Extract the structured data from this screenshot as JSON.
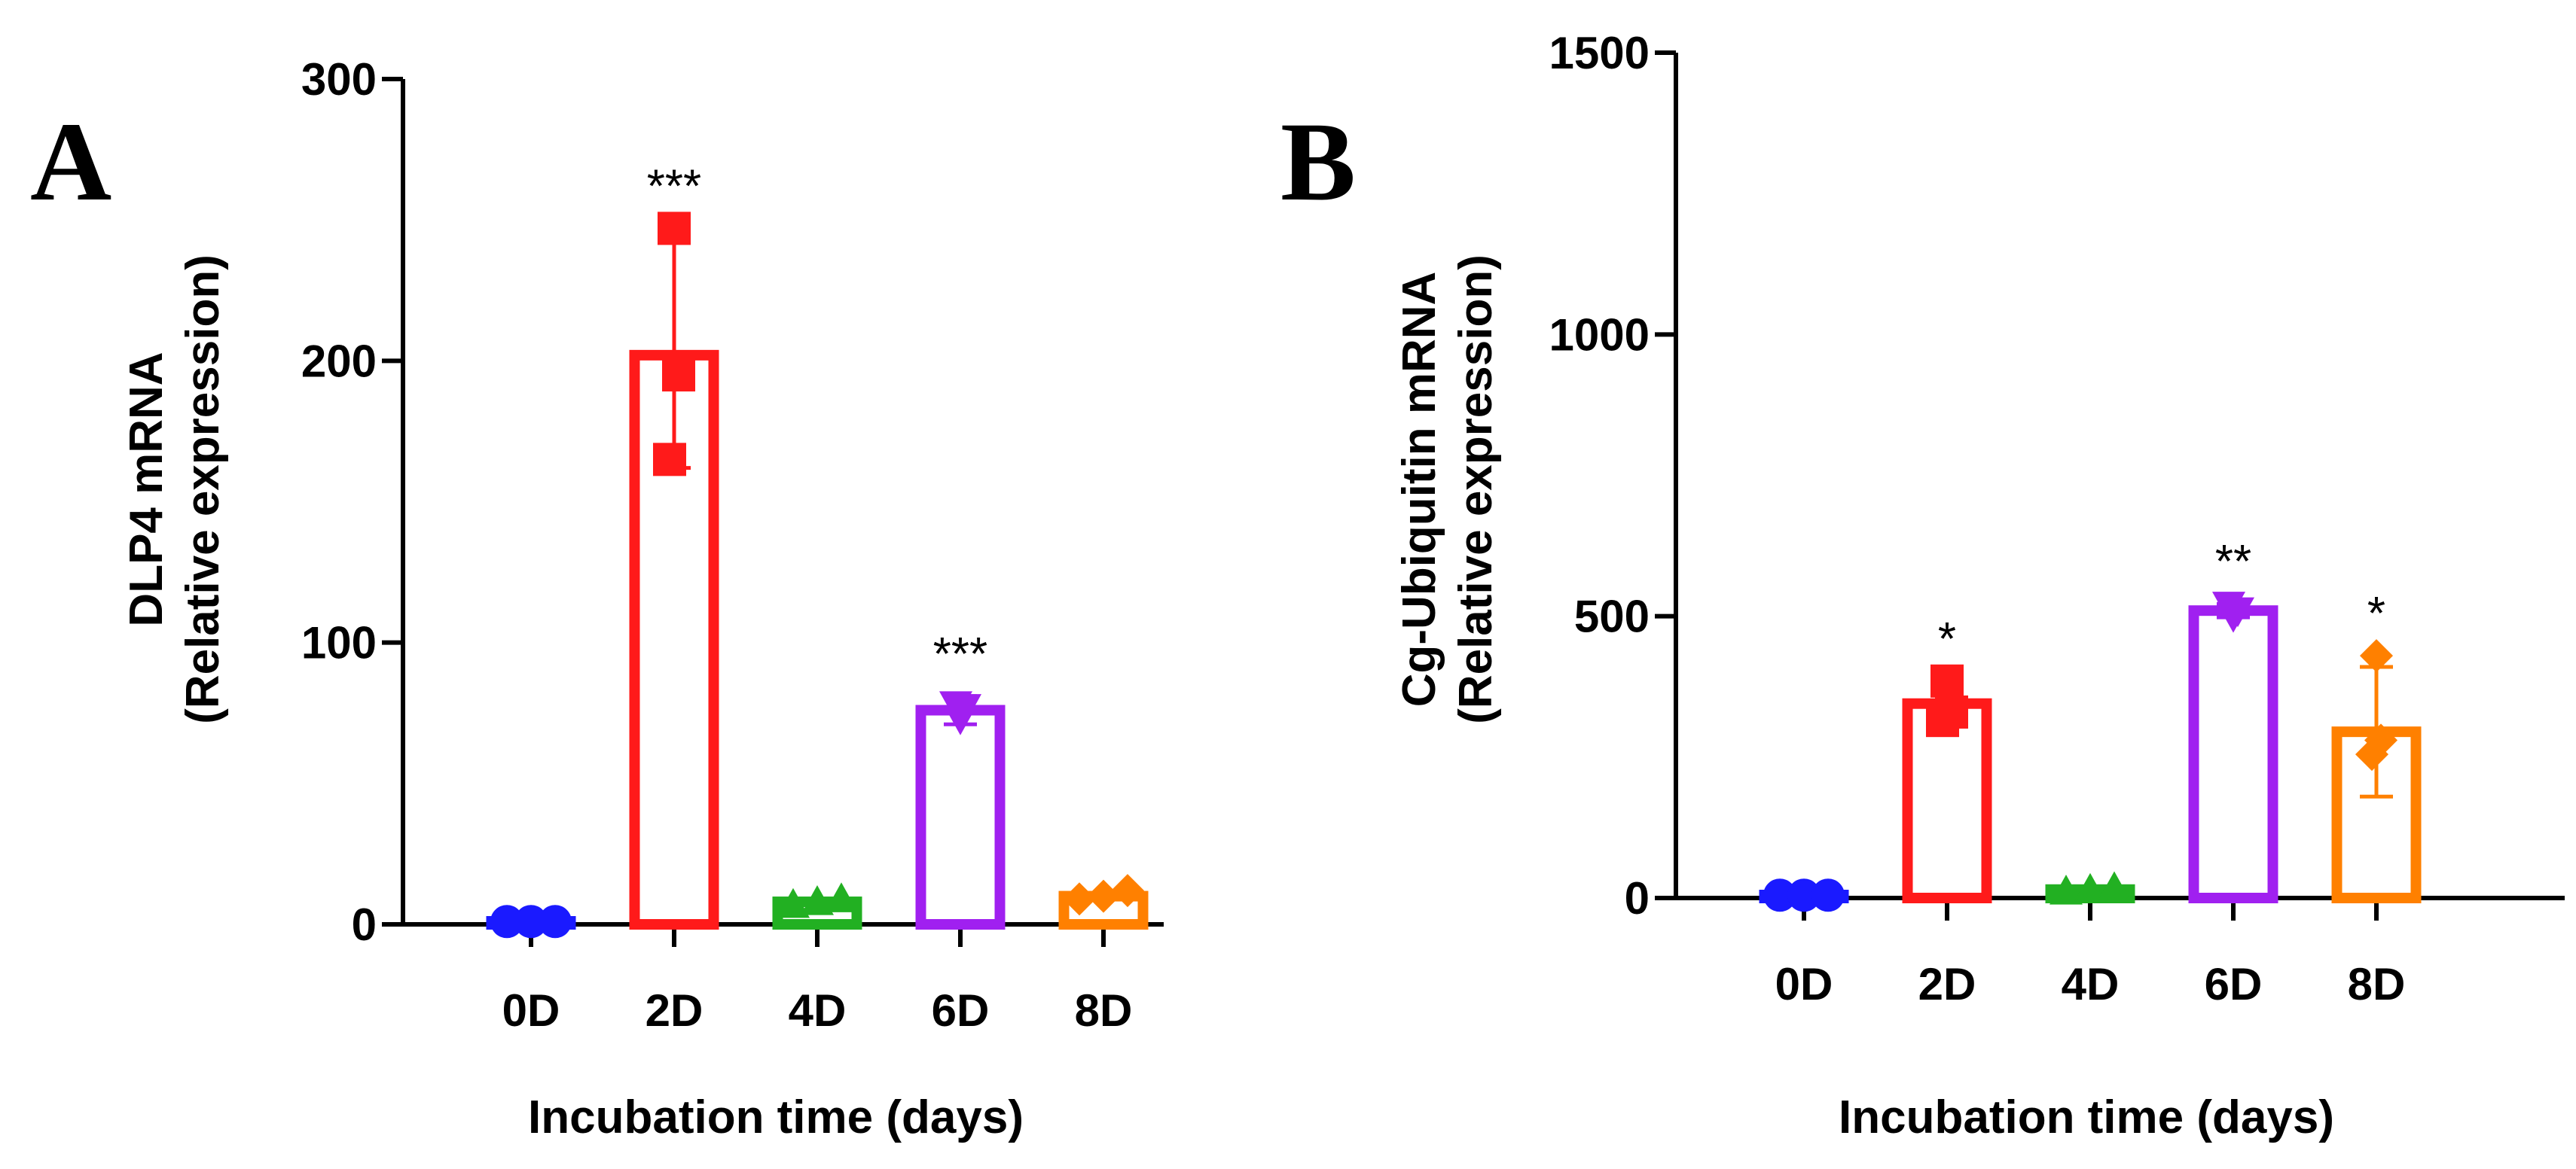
{
  "chart_data": [
    {
      "panel": "A",
      "type": "bar",
      "ylabel_line1": "DLP4 mRNA",
      "ylabel_line2": "(Relative expression)",
      "xlabel": "Incubation time (days)",
      "ylim": [
        0,
        300
      ],
      "yticks": [
        0,
        100,
        200,
        300
      ],
      "categories": [
        "0D",
        "2D",
        "4D",
        "6D",
        "8D"
      ],
      "values": [
        1,
        202,
        8,
        76,
        10
      ],
      "errors": [
        0,
        40,
        0,
        5,
        0
      ],
      "points": [
        [
          1,
          1,
          1
        ],
        [
          247,
          195,
          165
        ],
        [
          7,
          8,
          9
        ],
        [
          73,
          77,
          78
        ],
        [
          9,
          10,
          12
        ]
      ],
      "significance": [
        "",
        "***",
        "",
        "***",
        ""
      ],
      "colors": [
        "#1a1aff",
        "#ff1a1a",
        "#22b022",
        "#a020f0",
        "#ff8000"
      ],
      "markers": [
        "circle",
        "square",
        "triangle-up",
        "triangle-down",
        "diamond"
      ]
    },
    {
      "panel": "B",
      "type": "bar",
      "ylabel_line1": "Cg-Ubiquitin mRNA",
      "ylabel_line2": "(Relative expression)",
      "xlabel": "Incubation time (days)",
      "ylim": [
        0,
        1500
      ],
      "yticks": [
        0,
        500,
        1000,
        1500
      ],
      "categories": [
        "0D",
        "2D",
        "4D",
        "6D",
        "8D"
      ],
      "values": [
        5,
        345,
        15,
        510,
        295
      ],
      "errors": [
        0,
        35,
        0,
        12,
        115
      ],
      "points": [
        [
          5,
          5,
          5
        ],
        [
          385,
          330,
          315
        ],
        [
          12,
          15,
          18
        ],
        [
          500,
          510,
          520
        ],
        [
          430,
          280,
          255
        ]
      ],
      "significance": [
        "",
        "*",
        "",
        "**",
        "*"
      ],
      "colors": [
        "#1a1aff",
        "#ff1a1a",
        "#22b022",
        "#a020f0",
        "#ff8000"
      ],
      "markers": [
        "circle",
        "square",
        "triangle-up",
        "triangle-down",
        "diamond"
      ]
    }
  ]
}
